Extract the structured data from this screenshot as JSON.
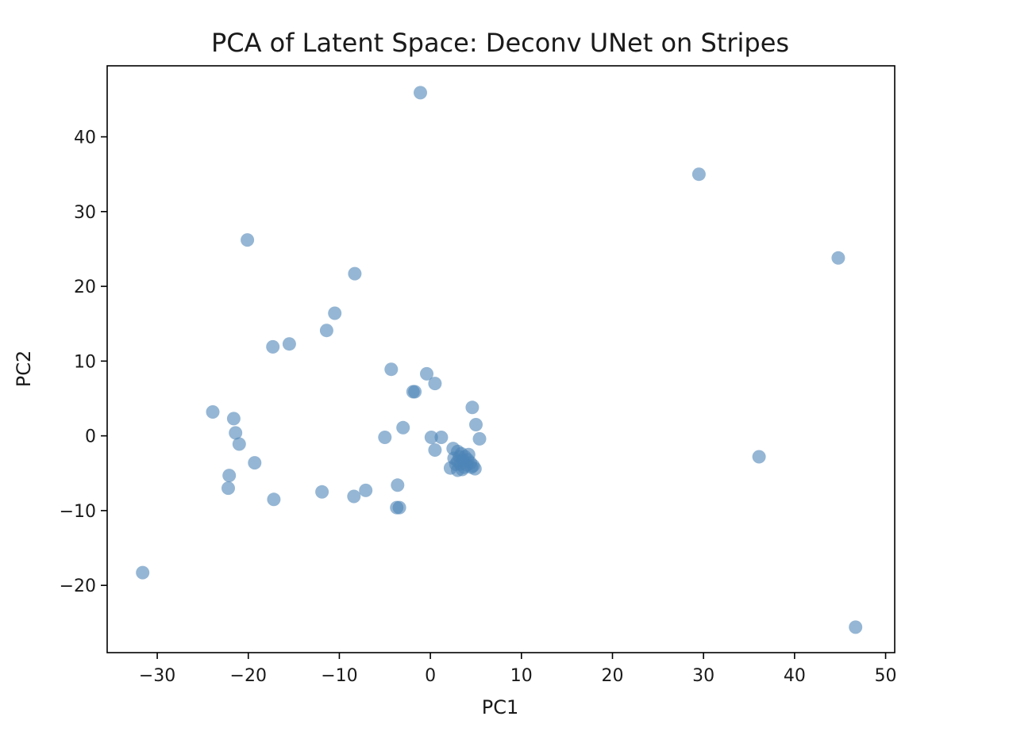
{
  "chart_data": {
    "type": "scatter",
    "title": "PCA of Latent Space: Deconv UNet on Stripes",
    "xlabel": "PC1",
    "ylabel": "PC2",
    "xlim": [
      -35.5,
      51
    ],
    "ylim": [
      -29,
      49.5
    ],
    "xticks": [
      -30,
      -20,
      -10,
      0,
      10,
      20,
      30,
      40,
      50
    ],
    "xtick_labels": [
      "−30",
      "−20",
      "−10",
      "0",
      "10",
      "20",
      "30",
      "40",
      "50"
    ],
    "yticks": [
      -20,
      -10,
      0,
      10,
      20,
      30,
      40
    ],
    "ytick_labels": [
      "−20",
      "−10",
      "0",
      "10",
      "20",
      "30",
      "40"
    ],
    "grid": false,
    "marker_color": "#4f86b8",
    "marker_alpha": 0.6,
    "points": [
      {
        "x": -1.1,
        "y": 45.9
      },
      {
        "x": 29.5,
        "y": 35.0
      },
      {
        "x": 44.8,
        "y": 23.8
      },
      {
        "x": -20.1,
        "y": 26.2
      },
      {
        "x": -8.3,
        "y": 21.7
      },
      {
        "x": -10.5,
        "y": 16.4
      },
      {
        "x": -11.4,
        "y": 14.1
      },
      {
        "x": -17.3,
        "y": 11.9
      },
      {
        "x": -15.5,
        "y": 12.3
      },
      {
        "x": -4.3,
        "y": 8.9
      },
      {
        "x": -0.4,
        "y": 8.3
      },
      {
        "x": 0.5,
        "y": 7.0
      },
      {
        "x": -1.9,
        "y": 5.9
      },
      {
        "x": -1.7,
        "y": 5.9
      },
      {
        "x": 4.6,
        "y": 3.8
      },
      {
        "x": 5.0,
        "y": 1.5
      },
      {
        "x": 5.4,
        "y": -0.4
      },
      {
        "x": -3.0,
        "y": 1.1
      },
      {
        "x": -5.0,
        "y": -0.2
      },
      {
        "x": 0.1,
        "y": -0.2
      },
      {
        "x": 1.2,
        "y": -0.2
      },
      {
        "x": 0.5,
        "y": -1.9
      },
      {
        "x": -23.9,
        "y": 3.2
      },
      {
        "x": -21.6,
        "y": 2.3
      },
      {
        "x": -21.4,
        "y": 0.4
      },
      {
        "x": -21.0,
        "y": -1.1
      },
      {
        "x": -19.3,
        "y": -3.6
      },
      {
        "x": -22.1,
        "y": -5.3
      },
      {
        "x": -22.2,
        "y": -7.0
      },
      {
        "x": -17.2,
        "y": -8.5
      },
      {
        "x": -11.9,
        "y": -7.5
      },
      {
        "x": -8.4,
        "y": -8.1
      },
      {
        "x": -7.1,
        "y": -7.3
      },
      {
        "x": -3.6,
        "y": -6.6
      },
      {
        "x": -3.7,
        "y": -9.6
      },
      {
        "x": -3.4,
        "y": -9.6
      },
      {
        "x": 36.1,
        "y": -2.8
      },
      {
        "x": -31.6,
        "y": -18.3
      },
      {
        "x": 46.7,
        "y": -25.6
      },
      {
        "x": 2.5,
        "y": -1.7
      },
      {
        "x": 3.0,
        "y": -2.1
      },
      {
        "x": 3.4,
        "y": -2.4
      },
      {
        "x": 3.8,
        "y": -2.8
      },
      {
        "x": 4.1,
        "y": -3.2
      },
      {
        "x": 4.4,
        "y": -3.6
      },
      {
        "x": 4.7,
        "y": -4.0
      },
      {
        "x": 4.9,
        "y": -4.4
      },
      {
        "x": 2.6,
        "y": -3.0
      },
      {
        "x": 3.0,
        "y": -3.4
      },
      {
        "x": 3.3,
        "y": -3.8
      },
      {
        "x": 3.7,
        "y": -4.2
      },
      {
        "x": 3.0,
        "y": -4.6
      },
      {
        "x": 2.2,
        "y": -4.3
      },
      {
        "x": 3.2,
        "y": -2.8
      },
      {
        "x": 3.6,
        "y": -3.3
      },
      {
        "x": 4.0,
        "y": -3.9
      },
      {
        "x": 4.5,
        "y": -4.2
      },
      {
        "x": 3.5,
        "y": -4.5
      },
      {
        "x": 2.8,
        "y": -3.8
      },
      {
        "x": 4.2,
        "y": -2.5
      }
    ]
  }
}
